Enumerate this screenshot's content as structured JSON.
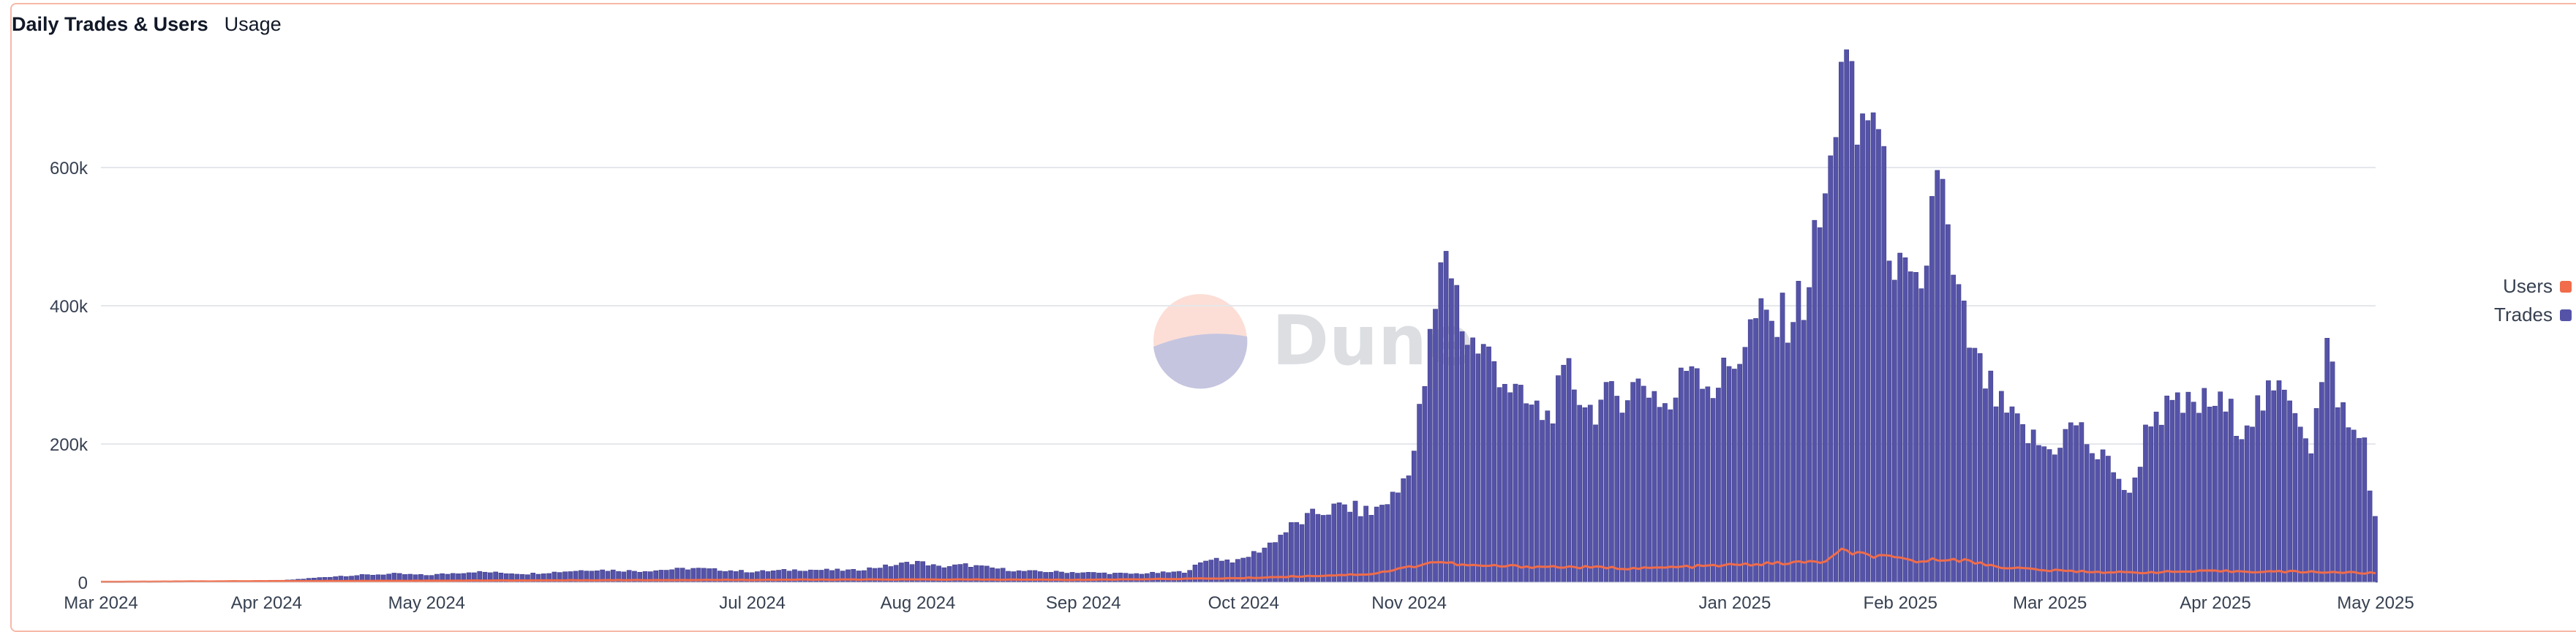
{
  "header": {
    "title": "Daily Trades & Users",
    "subtitle": "Usage"
  },
  "watermark": {
    "text": "Dune"
  },
  "colors": {
    "trades": "#5553a8",
    "trades_edge": "#3e3c8a",
    "users": "#f06c4a",
    "grid": "#e5e7eb",
    "axis_text": "#374151",
    "border": "#f6b9a7"
  },
  "legend": [
    {
      "name": "Users",
      "color": "#f06c4a"
    },
    {
      "name": "Trades",
      "color": "#5553a8"
    }
  ],
  "chart_data": {
    "type": "bar",
    "grid": true,
    "legend_position": "right",
    "ylim": [
      0,
      800000
    ],
    "y_ticks": [
      {
        "value": 0,
        "label": "0"
      },
      {
        "value": 200000,
        "label": "200k"
      },
      {
        "value": 400000,
        "label": "400k"
      },
      {
        "value": 600000,
        "label": "600k"
      }
    ],
    "x_start": "2024-03-01",
    "x_end": "2025-05-01",
    "x_ticks": [
      {
        "date": "2024-03-01",
        "label": "Mar 2024"
      },
      {
        "date": "2024-04-01",
        "label": "Apr 2024"
      },
      {
        "date": "2024-05-01",
        "label": "May 2024"
      },
      {
        "date": "2024-07-01",
        "label": "Jul 2024"
      },
      {
        "date": "2024-08-01",
        "label": "Aug 2024"
      },
      {
        "date": "2024-09-01",
        "label": "Sep 2024"
      },
      {
        "date": "2024-10-01",
        "label": "Oct 2024"
      },
      {
        "date": "2024-11-01",
        "label": "Nov 2024"
      },
      {
        "date": "2025-01-01",
        "label": "Jan 2025"
      },
      {
        "date": "2025-02-01",
        "label": "Feb 2025"
      },
      {
        "date": "2025-03-01",
        "label": "Mar 2025"
      },
      {
        "date": "2025-04-01",
        "label": "Apr 2025"
      },
      {
        "date": "2025-05-01",
        "label": "May 2025"
      }
    ],
    "series": [
      {
        "name": "Trades",
        "kind": "bar",
        "color": "#5553a8",
        "points": [
          [
            "2024-03-10",
            1000
          ],
          [
            "2024-03-25",
            1500
          ],
          [
            "2024-04-05",
            3000
          ],
          [
            "2024-04-10",
            6000
          ],
          [
            "2024-04-15",
            9000
          ],
          [
            "2024-04-25",
            12000
          ],
          [
            "2024-05-01",
            10000
          ],
          [
            "2024-05-10",
            15000
          ],
          [
            "2024-05-20",
            12000
          ],
          [
            "2024-06-01",
            18000
          ],
          [
            "2024-06-10",
            16000
          ],
          [
            "2024-06-20",
            20000
          ],
          [
            "2024-07-01",
            15000
          ],
          [
            "2024-07-10",
            18000
          ],
          [
            "2024-07-20",
            17000
          ],
          [
            "2024-07-28",
            25000
          ],
          [
            "2024-08-01",
            30000
          ],
          [
            "2024-08-05",
            22000
          ],
          [
            "2024-08-10",
            25000
          ],
          [
            "2024-08-20",
            16000
          ],
          [
            "2024-09-01",
            14000
          ],
          [
            "2024-09-10",
            12000
          ],
          [
            "2024-09-20",
            15000
          ],
          [
            "2024-09-25",
            35000
          ],
          [
            "2024-09-30",
            30000
          ],
          [
            "2024-10-05",
            50000
          ],
          [
            "2024-10-10",
            80000
          ],
          [
            "2024-10-15",
            100000
          ],
          [
            "2024-10-20",
            110000
          ],
          [
            "2024-10-25",
            100000
          ],
          [
            "2024-10-30",
            130000
          ],
          [
            "2024-11-02",
            190000
          ],
          [
            "2024-11-05",
            340000
          ],
          [
            "2024-11-08",
            490000
          ],
          [
            "2024-11-12",
            350000
          ],
          [
            "2024-11-17",
            320000
          ],
          [
            "2024-11-22",
            260000
          ],
          [
            "2024-11-27",
            240000
          ],
          [
            "2024-12-01",
            300000
          ],
          [
            "2024-12-05",
            250000
          ],
          [
            "2024-12-10",
            270000
          ],
          [
            "2024-12-15",
            290000
          ],
          [
            "2024-12-20",
            250000
          ],
          [
            "2024-12-24",
            330000
          ],
          [
            "2024-12-28",
            280000
          ],
          [
            "2025-01-01",
            320000
          ],
          [
            "2025-01-05",
            380000
          ],
          [
            "2025-01-09",
            370000
          ],
          [
            "2025-01-14",
            410000
          ],
          [
            "2025-01-19",
            590000
          ],
          [
            "2025-01-21",
            780000
          ],
          [
            "2025-01-24",
            640000
          ],
          [
            "2025-01-27",
            700000
          ],
          [
            "2025-01-30",
            510000
          ],
          [
            "2025-02-01",
            440000
          ],
          [
            "2025-02-05",
            400000
          ],
          [
            "2025-02-08",
            620000
          ],
          [
            "2025-02-11",
            430000
          ],
          [
            "2025-02-15",
            320000
          ],
          [
            "2025-02-20",
            250000
          ],
          [
            "2025-02-25",
            210000
          ],
          [
            "2025-03-01",
            190000
          ],
          [
            "2025-03-06",
            230000
          ],
          [
            "2025-03-10",
            180000
          ],
          [
            "2025-03-13",
            170000
          ],
          [
            "2025-03-16",
            120000
          ],
          [
            "2025-03-20",
            245000
          ],
          [
            "2025-03-25",
            250000
          ],
          [
            "2025-04-01",
            260000
          ],
          [
            "2025-04-06",
            230000
          ],
          [
            "2025-04-10",
            260000
          ],
          [
            "2025-04-15",
            280000
          ],
          [
            "2025-04-19",
            200000
          ],
          [
            "2025-04-22",
            330000
          ],
          [
            "2025-04-26",
            220000
          ],
          [
            "2025-04-29",
            205000
          ],
          [
            "2025-05-01",
            90000
          ]
        ]
      },
      {
        "name": "Users",
        "kind": "line",
        "color": "#f06c4a",
        "points": [
          [
            "2024-03-01",
            500
          ],
          [
            "2024-04-01",
            1500
          ],
          [
            "2024-06-01",
            3000
          ],
          [
            "2024-08-01",
            4000
          ],
          [
            "2024-09-01",
            3500
          ],
          [
            "2024-10-01",
            6000
          ],
          [
            "2024-10-25",
            12000
          ],
          [
            "2024-11-01",
            22000
          ],
          [
            "2024-11-06",
            30000
          ],
          [
            "2024-11-12",
            24000
          ],
          [
            "2024-12-01",
            22000
          ],
          [
            "2024-12-15",
            20000
          ],
          [
            "2025-01-01",
            25000
          ],
          [
            "2025-01-18",
            30000
          ],
          [
            "2025-01-21",
            45000
          ],
          [
            "2025-01-27",
            38000
          ],
          [
            "2025-02-05",
            30000
          ],
          [
            "2025-02-10",
            35000
          ],
          [
            "2025-02-20",
            22000
          ],
          [
            "2025-03-01",
            17000
          ],
          [
            "2025-03-15",
            14000
          ],
          [
            "2025-04-01",
            16000
          ],
          [
            "2025-04-20",
            15000
          ],
          [
            "2025-05-01",
            13000
          ]
        ]
      }
    ]
  }
}
